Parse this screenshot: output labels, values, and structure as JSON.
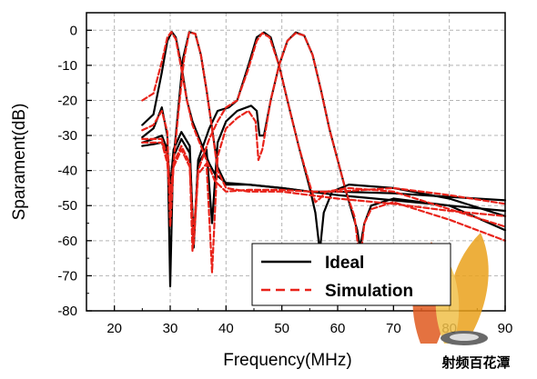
{
  "chart_data": {
    "type": "line",
    "title": "",
    "xlabel": "Frequency(MHz)",
    "ylabel": "Sparament(dB)",
    "xlim": [
      15,
      90
    ],
    "ylim": [
      -80,
      5
    ],
    "x_ticks": [
      20,
      30,
      40,
      50,
      60,
      70,
      80,
      90
    ],
    "y_ticks": [
      0,
      -10,
      -20,
      -30,
      -40,
      -50,
      -60,
      -70,
      -80
    ],
    "x_tick_labels": [
      "20",
      "30",
      "40",
      "50",
      "60",
      "70",
      "80",
      "90"
    ],
    "y_tick_labels": [
      "0",
      "-10",
      "-20",
      "-30",
      "-40",
      "-50",
      "-60",
      "-70",
      "-80"
    ],
    "grid": true,
    "legend_position": "bottom-right",
    "legend": [
      {
        "label": "Ideal",
        "color": "#000000",
        "style": "solid"
      },
      {
        "label": "Simulation",
        "color": "#e8231a",
        "style": "dashed"
      }
    ],
    "series": [
      {
        "group": "Ideal",
        "color": "#000000",
        "points": [
          [
            25,
            -27
          ],
          [
            27,
            -24
          ],
          [
            28.5,
            -12
          ],
          [
            29.5,
            -3
          ],
          [
            30.3,
            -0.5
          ],
          [
            31,
            -2
          ],
          [
            32,
            -10
          ],
          [
            33,
            -20
          ],
          [
            34,
            -26
          ],
          [
            35,
            -30
          ],
          [
            36,
            -34
          ],
          [
            37,
            -38
          ],
          [
            38,
            -41
          ],
          [
            40,
            -43.5
          ],
          [
            44,
            -44
          ],
          [
            50,
            -45
          ],
          [
            55,
            -46
          ],
          [
            60,
            -46
          ],
          [
            70,
            -46.5
          ],
          [
            80,
            -47.5
          ],
          [
            90,
            -48.5
          ]
        ]
      },
      {
        "group": "Ideal",
        "color": "#000000",
        "points": [
          [
            25,
            -30.5
          ],
          [
            27,
            -28
          ],
          [
            28.5,
            -22
          ],
          [
            29.5,
            -30
          ],
          [
            30,
            -73
          ],
          [
            30.5,
            -38
          ],
          [
            31,
            -30
          ],
          [
            32.3,
            -8
          ],
          [
            33.4,
            -0.5
          ],
          [
            34.5,
            -1
          ],
          [
            35.5,
            -7
          ],
          [
            36.5,
            -17
          ],
          [
            37.5,
            -28
          ],
          [
            38.5,
            -39
          ],
          [
            40,
            -44
          ],
          [
            44,
            -44
          ],
          [
            50,
            -45
          ],
          [
            55,
            -46
          ],
          [
            60,
            -47
          ],
          [
            70,
            -48.5
          ],
          [
            80,
            -50
          ],
          [
            90,
            -51.5
          ]
        ]
      },
      {
        "group": "Ideal",
        "color": "#000000",
        "points": [
          [
            25,
            -32
          ],
          [
            27,
            -31
          ],
          [
            28.5,
            -30
          ],
          [
            29.5,
            -34
          ],
          [
            30,
            -45
          ],
          [
            30.6,
            -34
          ],
          [
            32,
            -29
          ],
          [
            33.5,
            -33
          ],
          [
            34.2,
            -62
          ],
          [
            35,
            -37
          ],
          [
            37,
            -28
          ],
          [
            38.5,
            -23
          ],
          [
            40.5,
            -22
          ],
          [
            42,
            -20
          ],
          [
            44,
            -10
          ],
          [
            45.5,
            -2
          ],
          [
            46.8,
            -0.6
          ],
          [
            48,
            -2
          ],
          [
            49.5,
            -10
          ],
          [
            51,
            -20
          ],
          [
            53,
            -33
          ],
          [
            55,
            -45
          ],
          [
            56,
            -52
          ],
          [
            56.8,
            -63
          ],
          [
            57.5,
            -52
          ],
          [
            59,
            -46
          ],
          [
            62,
            -44
          ],
          [
            70,
            -45
          ],
          [
            80,
            -48
          ],
          [
            90,
            -53
          ]
        ]
      },
      {
        "group": "Ideal",
        "color": "#000000",
        "points": [
          [
            25,
            -33
          ],
          [
            27,
            -32.5
          ],
          [
            28.5,
            -32
          ],
          [
            29.5,
            -35
          ],
          [
            30,
            -48
          ],
          [
            30.6,
            -36
          ],
          [
            32,
            -31
          ],
          [
            33.5,
            -35
          ],
          [
            34.2,
            -60
          ],
          [
            35,
            -38
          ],
          [
            36.5,
            -34
          ],
          [
            37.5,
            -55
          ],
          [
            38.5,
            -32
          ],
          [
            40,
            -26
          ],
          [
            42,
            -23
          ],
          [
            44.5,
            -21.5
          ],
          [
            45.5,
            -23
          ],
          [
            46,
            -30
          ],
          [
            46.8,
            -30
          ],
          [
            48,
            -20
          ],
          [
            49.5,
            -10
          ],
          [
            51,
            -3
          ],
          [
            52.5,
            -0.6
          ],
          [
            54,
            -1.5
          ],
          [
            55.5,
            -7
          ],
          [
            57,
            -17
          ],
          [
            58.5,
            -28
          ],
          [
            60,
            -37
          ],
          [
            61.5,
            -46
          ],
          [
            63.5,
            -57
          ],
          [
            64,
            -62
          ],
          [
            64.8,
            -55
          ],
          [
            66,
            -50
          ],
          [
            70,
            -48
          ],
          [
            80,
            -50
          ],
          [
            90,
            -57
          ]
        ]
      },
      {
        "group": "Simulation",
        "color": "#e8231a",
        "points": [
          [
            25,
            -20
          ],
          [
            27,
            -18
          ],
          [
            28.5,
            -9
          ],
          [
            29.5,
            -2
          ],
          [
            30.2,
            -0.5
          ],
          [
            31,
            -2.5
          ],
          [
            32,
            -11
          ],
          [
            33,
            -20
          ],
          [
            34,
            -27
          ],
          [
            35,
            -31
          ],
          [
            36,
            -35
          ],
          [
            37,
            -39
          ],
          [
            38,
            -43
          ],
          [
            40,
            -46
          ],
          [
            44,
            -45.5
          ],
          [
            50,
            -45.5
          ],
          [
            55,
            -46
          ],
          [
            60,
            -46
          ],
          [
            70,
            -45
          ],
          [
            80,
            -47
          ],
          [
            90,
            -49.5
          ]
        ]
      },
      {
        "group": "Simulation",
        "color": "#e8231a",
        "points": [
          [
            25,
            -28.5
          ],
          [
            27,
            -27
          ],
          [
            28.5,
            -23
          ],
          [
            29.5,
            -29
          ],
          [
            30,
            -56
          ],
          [
            30.7,
            -36
          ],
          [
            31.5,
            -23
          ],
          [
            32.5,
            -8
          ],
          [
            33.4,
            -0.6
          ],
          [
            34.5,
            -1
          ],
          [
            35.5,
            -7
          ],
          [
            36.5,
            -17
          ],
          [
            37.5,
            -28
          ],
          [
            38.5,
            -40
          ],
          [
            40,
            -45
          ],
          [
            44,
            -46
          ],
          [
            50,
            -46
          ],
          [
            55,
            -47
          ],
          [
            60,
            -48
          ],
          [
            70,
            -49.5
          ],
          [
            80,
            -51.5
          ],
          [
            90,
            -53
          ]
        ]
      },
      {
        "group": "Simulation",
        "color": "#e8231a",
        "points": [
          [
            25,
            -31
          ],
          [
            27,
            -31
          ],
          [
            28.5,
            -31
          ],
          [
            29.5,
            -36
          ],
          [
            30,
            -47
          ],
          [
            30.6,
            -38
          ],
          [
            32,
            -33
          ],
          [
            33.5,
            -38
          ],
          [
            34,
            -63
          ],
          [
            35,
            -40
          ],
          [
            37,
            -31
          ],
          [
            38.5,
            -26
          ],
          [
            40,
            -22
          ],
          [
            42,
            -20
          ],
          [
            44,
            -11
          ],
          [
            45.5,
            -3
          ],
          [
            46.5,
            -0.8
          ],
          [
            47.8,
            -2
          ],
          [
            49.5,
            -10
          ],
          [
            51,
            -20
          ],
          [
            53,
            -33
          ],
          [
            55,
            -44
          ],
          [
            56,
            -49
          ],
          [
            56.8,
            -48
          ],
          [
            58,
            -46
          ],
          [
            62,
            -45
          ],
          [
            70,
            -46
          ],
          [
            80,
            -51
          ],
          [
            90,
            -56
          ]
        ]
      },
      {
        "group": "Simulation",
        "color": "#e8231a",
        "points": [
          [
            25,
            -32
          ],
          [
            27,
            -32
          ],
          [
            28.5,
            -32
          ],
          [
            29.5,
            -38
          ],
          [
            30,
            -50
          ],
          [
            30.6,
            -39
          ],
          [
            32,
            -34
          ],
          [
            33.5,
            -39
          ],
          [
            34.2,
            -61
          ],
          [
            35,
            -41
          ],
          [
            36.5,
            -38
          ],
          [
            37.5,
            -69
          ],
          [
            38.5,
            -36
          ],
          [
            40,
            -28
          ],
          [
            42,
            -25
          ],
          [
            44,
            -23
          ],
          [
            45.3,
            -26
          ],
          [
            45.8,
            -37
          ],
          [
            46.5,
            -34
          ],
          [
            48,
            -20
          ],
          [
            49.5,
            -10
          ],
          [
            51,
            -3
          ],
          [
            52.5,
            -0.8
          ],
          [
            54,
            -1.5
          ],
          [
            55.5,
            -7
          ],
          [
            57,
            -17
          ],
          [
            58.5,
            -28
          ],
          [
            60,
            -37
          ],
          [
            61.5,
            -46
          ],
          [
            63,
            -53
          ],
          [
            64,
            -66
          ],
          [
            64.8,
            -55
          ],
          [
            66,
            -51
          ],
          [
            70,
            -49
          ],
          [
            80,
            -54
          ],
          [
            90,
            -60
          ]
        ]
      }
    ]
  },
  "watermark": {
    "text": "射频百花潭"
  }
}
